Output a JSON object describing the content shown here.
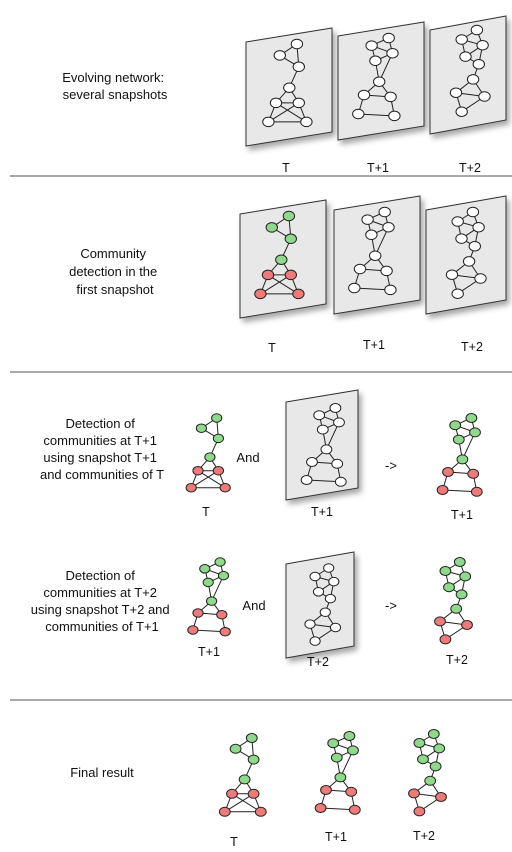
{
  "colors": {
    "green": "#8fd98a",
    "red": "#ee7a7a",
    "white": "#ffffff",
    "panel": "#e8e8e8"
  },
  "sections": [
    {
      "description_lines": [
        "Evolving network:",
        "several snapshots"
      ],
      "labels": [
        "T",
        "T+1",
        "T+2"
      ]
    },
    {
      "description_lines": [
        "Community",
        "detection in the",
        "first snapshot"
      ],
      "labels": [
        "T",
        "T+1",
        "T+2"
      ]
    },
    {
      "description_lines": [
        "Detection of",
        "communities at T+1",
        "using snapshot T+1",
        "and communities of T"
      ],
      "labels": [
        "T",
        "T+1",
        "T+1"
      ],
      "and_word": "And",
      "arrow": "->"
    },
    {
      "description_lines": [
        "Detection of",
        "communities at T+2",
        "using snapshot T+2 and",
        "communities of T+1"
      ],
      "labels": [
        "T+1",
        "T+2",
        "T+2"
      ],
      "and_word": "And",
      "arrow": "->"
    },
    {
      "description_lines": [
        "Final result"
      ],
      "labels": [
        "T",
        "T+1",
        "T+2"
      ]
    }
  ]
}
